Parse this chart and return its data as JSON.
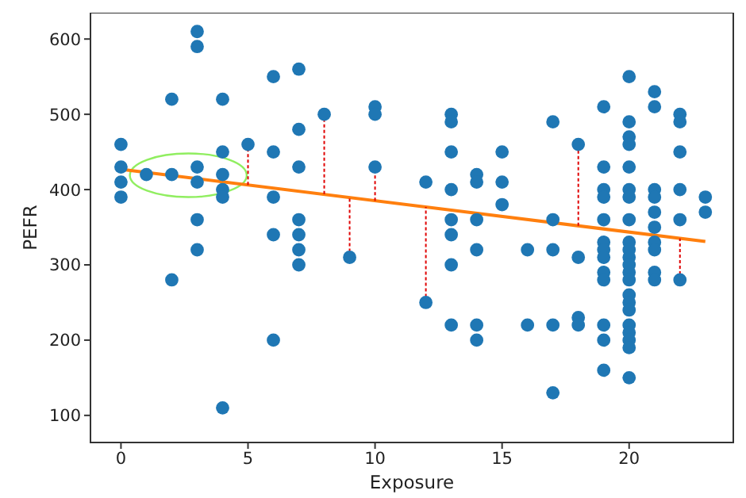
{
  "chart_data": {
    "type": "scatter",
    "xlabel": "Exposure",
    "ylabel": "PEFR",
    "xlim": [
      -1.2,
      24.1
    ],
    "ylim": [
      64,
      635
    ],
    "xticks": [
      0,
      5,
      10,
      15,
      20
    ],
    "yticks": [
      100,
      200,
      300,
      400,
      500,
      600
    ],
    "grid": false,
    "legend": false,
    "marker": "circle",
    "series": [
      {
        "color": "#1f77b4",
        "x": [
          0,
          0,
          0,
          0,
          1,
          2,
          2,
          2,
          3,
          3,
          3,
          3,
          3,
          3,
          4,
          4,
          4,
          4,
          4,
          4,
          5,
          6,
          6,
          6,
          6,
          6,
          7,
          7,
          7,
          7,
          7,
          7,
          7,
          8,
          9,
          10,
          10,
          10,
          12,
          12,
          13,
          13,
          13,
          13,
          13,
          13,
          13,
          13,
          14,
          14,
          14,
          14,
          14,
          14,
          15,
          15,
          15,
          16,
          16,
          17,
          17,
          17,
          17,
          17,
          18,
          18,
          18,
          18,
          19,
          19,
          19,
          19,
          19,
          19,
          19,
          19,
          19,
          19,
          19,
          19,
          19,
          20,
          20,
          20,
          20,
          20,
          20,
          20,
          20,
          20,
          20,
          20,
          20,
          20,
          20,
          20,
          20,
          20,
          20,
          20,
          20,
          20,
          20,
          21,
          21,
          21,
          21,
          21,
          21,
          21,
          21,
          21,
          21,
          22,
          22,
          22,
          22,
          22,
          22,
          23,
          23
        ],
        "values": [
          460,
          430,
          410,
          390,
          420,
          520,
          420,
          280,
          610,
          590,
          430,
          410,
          360,
          320,
          520,
          450,
          420,
          400,
          390,
          110,
          460,
          550,
          450,
          390,
          340,
          200,
          560,
          480,
          430,
          360,
          340,
          320,
          300,
          500,
          310,
          510,
          500,
          430,
          410,
          250,
          500,
          490,
          450,
          400,
          360,
          340,
          300,
          220,
          420,
          410,
          360,
          320,
          220,
          200,
          450,
          410,
          380,
          320,
          220,
          490,
          360,
          320,
          220,
          130,
          460,
          310,
          230,
          220,
          510,
          430,
          400,
          390,
          360,
          330,
          320,
          310,
          290,
          280,
          220,
          200,
          160,
          550,
          490,
          470,
          460,
          430,
          400,
          390,
          360,
          330,
          320,
          310,
          300,
          290,
          280,
          260,
          250,
          240,
          220,
          210,
          200,
          190,
          150,
          530,
          510,
          400,
          390,
          370,
          350,
          330,
          320,
          290,
          280,
          500,
          490,
          450,
          400,
          360,
          280,
          390,
          370
        ],
        "errors": [
          null,
          null,
          null,
          null,
          null,
          null,
          null,
          null,
          null,
          null,
          null,
          null,
          null,
          null,
          null,
          null,
          null,
          null,
          null,
          null,
          [
            406,
            460
          ],
          null,
          null,
          null,
          null,
          null,
          null,
          null,
          null,
          null,
          null,
          null,
          null,
          [
            394,
            500
          ],
          [
            310,
            389
          ],
          null,
          null,
          [
            385,
            430
          ],
          null,
          [
            250,
            377
          ],
          null,
          null,
          null,
          null,
          null,
          null,
          null,
          null,
          null,
          null,
          null,
          null,
          null,
          null,
          null,
          null,
          null,
          null,
          null,
          null,
          null,
          null,
          null,
          null,
          [
            352,
            460
          ],
          null,
          null,
          null,
          null,
          null,
          null,
          null,
          null,
          null,
          null,
          null,
          null,
          null,
          null,
          null,
          null,
          null,
          null,
          null,
          null,
          null,
          null,
          null,
          null,
          null,
          null,
          null,
          null,
          null,
          null,
          null,
          null,
          null,
          null,
          null,
          null,
          null,
          null,
          null,
          null,
          null,
          null,
          null,
          null,
          null,
          null,
          null,
          null,
          null,
          null,
          null,
          null,
          null,
          [
            280,
            335
          ],
          null,
          null
        ]
      },
      {
        "type": "line",
        "color": "#ff7f0e",
        "marker": "none",
        "x": [
          0,
          23
        ],
        "values": [
          427,
          331
        ]
      }
    ]
  }
}
